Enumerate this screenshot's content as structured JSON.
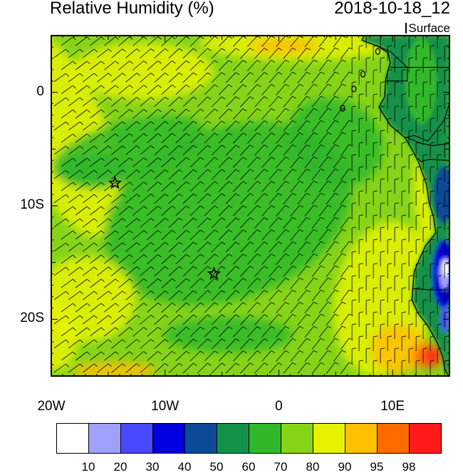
{
  "header": {
    "title": "Relative Humidity (%)",
    "datetime": "2018-10-18_12",
    "level": "Surface"
  },
  "axes": {
    "lat_ticks": [
      "0",
      "10S",
      "20S"
    ],
    "lon_ticks": [
      "20W",
      "10W",
      "0",
      "10E"
    ]
  },
  "colorbar": {
    "labels": [
      "10",
      "20",
      "30",
      "40",
      "50",
      "60",
      "70",
      "80",
      "90",
      "95",
      "98"
    ],
    "colors": [
      "#ffffff",
      "#a0a0ff",
      "#4848ff",
      "#0000e0",
      "#0a4a96",
      "#12914a",
      "#30b82a",
      "#86d418",
      "#e6f200",
      "#ffc000",
      "#ff6a00",
      "#ff1a1a"
    ]
  },
  "map": {
    "lon_range": [
      -20,
      15
    ],
    "lat_range": [
      -25,
      5
    ],
    "markers": [
      {
        "name": "star-marker",
        "lon": -14.4,
        "lat": -8.0
      },
      {
        "name": "star-marker",
        "lon": -5.7,
        "lat": -16.0
      }
    ],
    "colors": {
      "ocean_base": "#86d418",
      "moist_band": "#30b82a",
      "drier_band": "#e6f200",
      "dry_coast": "#ffc000",
      "very_dry": "#ff6a00",
      "extreme": "#ff1a1a",
      "land_green": "#12914a",
      "land_blue": "#0000e0"
    }
  }
}
